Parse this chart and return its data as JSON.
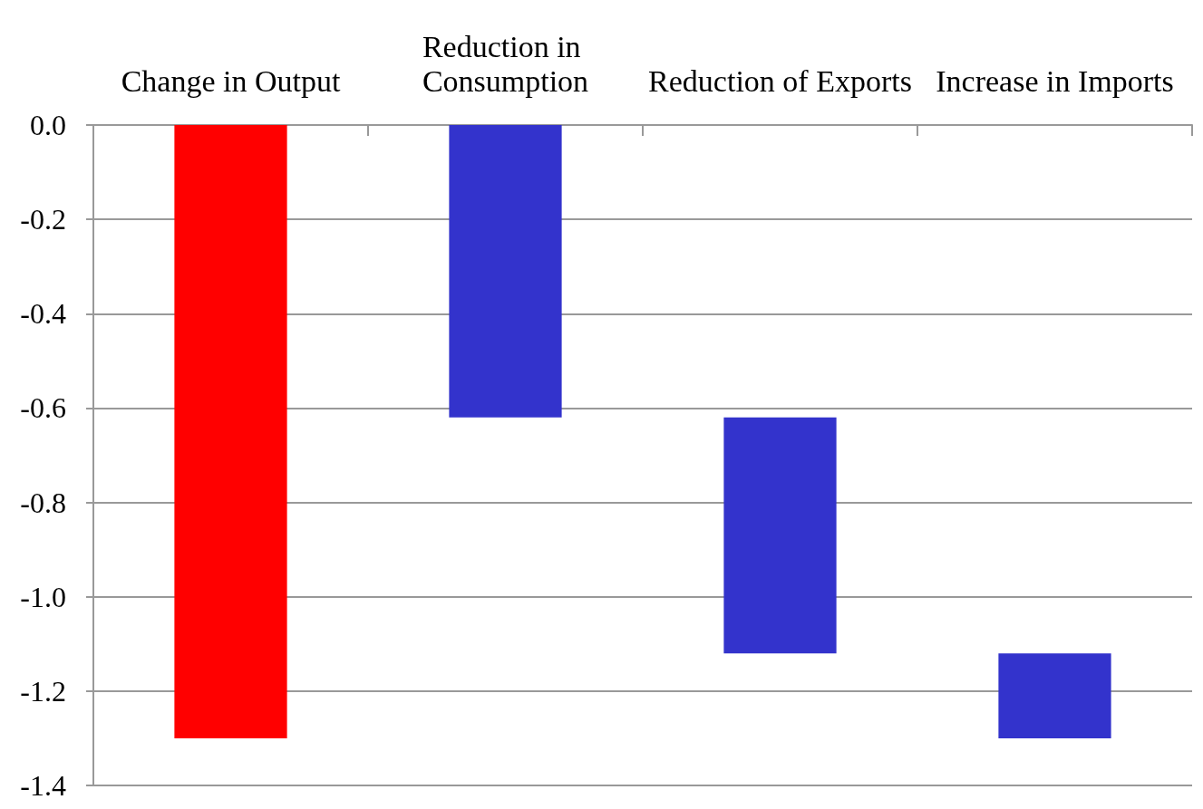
{
  "chart_data": {
    "type": "bar",
    "categories": [
      "Change in Output",
      "Reduction in Consumption",
      "Reduction of Exports",
      "Increase in Imports"
    ],
    "values": [
      -1.3,
      -0.62,
      -0.5,
      -0.18
    ],
    "base": [
      0,
      0,
      -0.62,
      -1.12
    ],
    "colors": [
      "#ff0000",
      "#3333cc",
      "#3333cc",
      "#3333cc"
    ],
    "ylim": [
      -1.4,
      0
    ],
    "yticks": [
      {
        "value": 0,
        "label": "0.0"
      },
      -0.2,
      -0.4,
      -0.6,
      -0.8,
      {
        "value": -1,
        "label": "-1.0"
      },
      -1.2,
      -1.4
    ],
    "grid": "y"
  }
}
